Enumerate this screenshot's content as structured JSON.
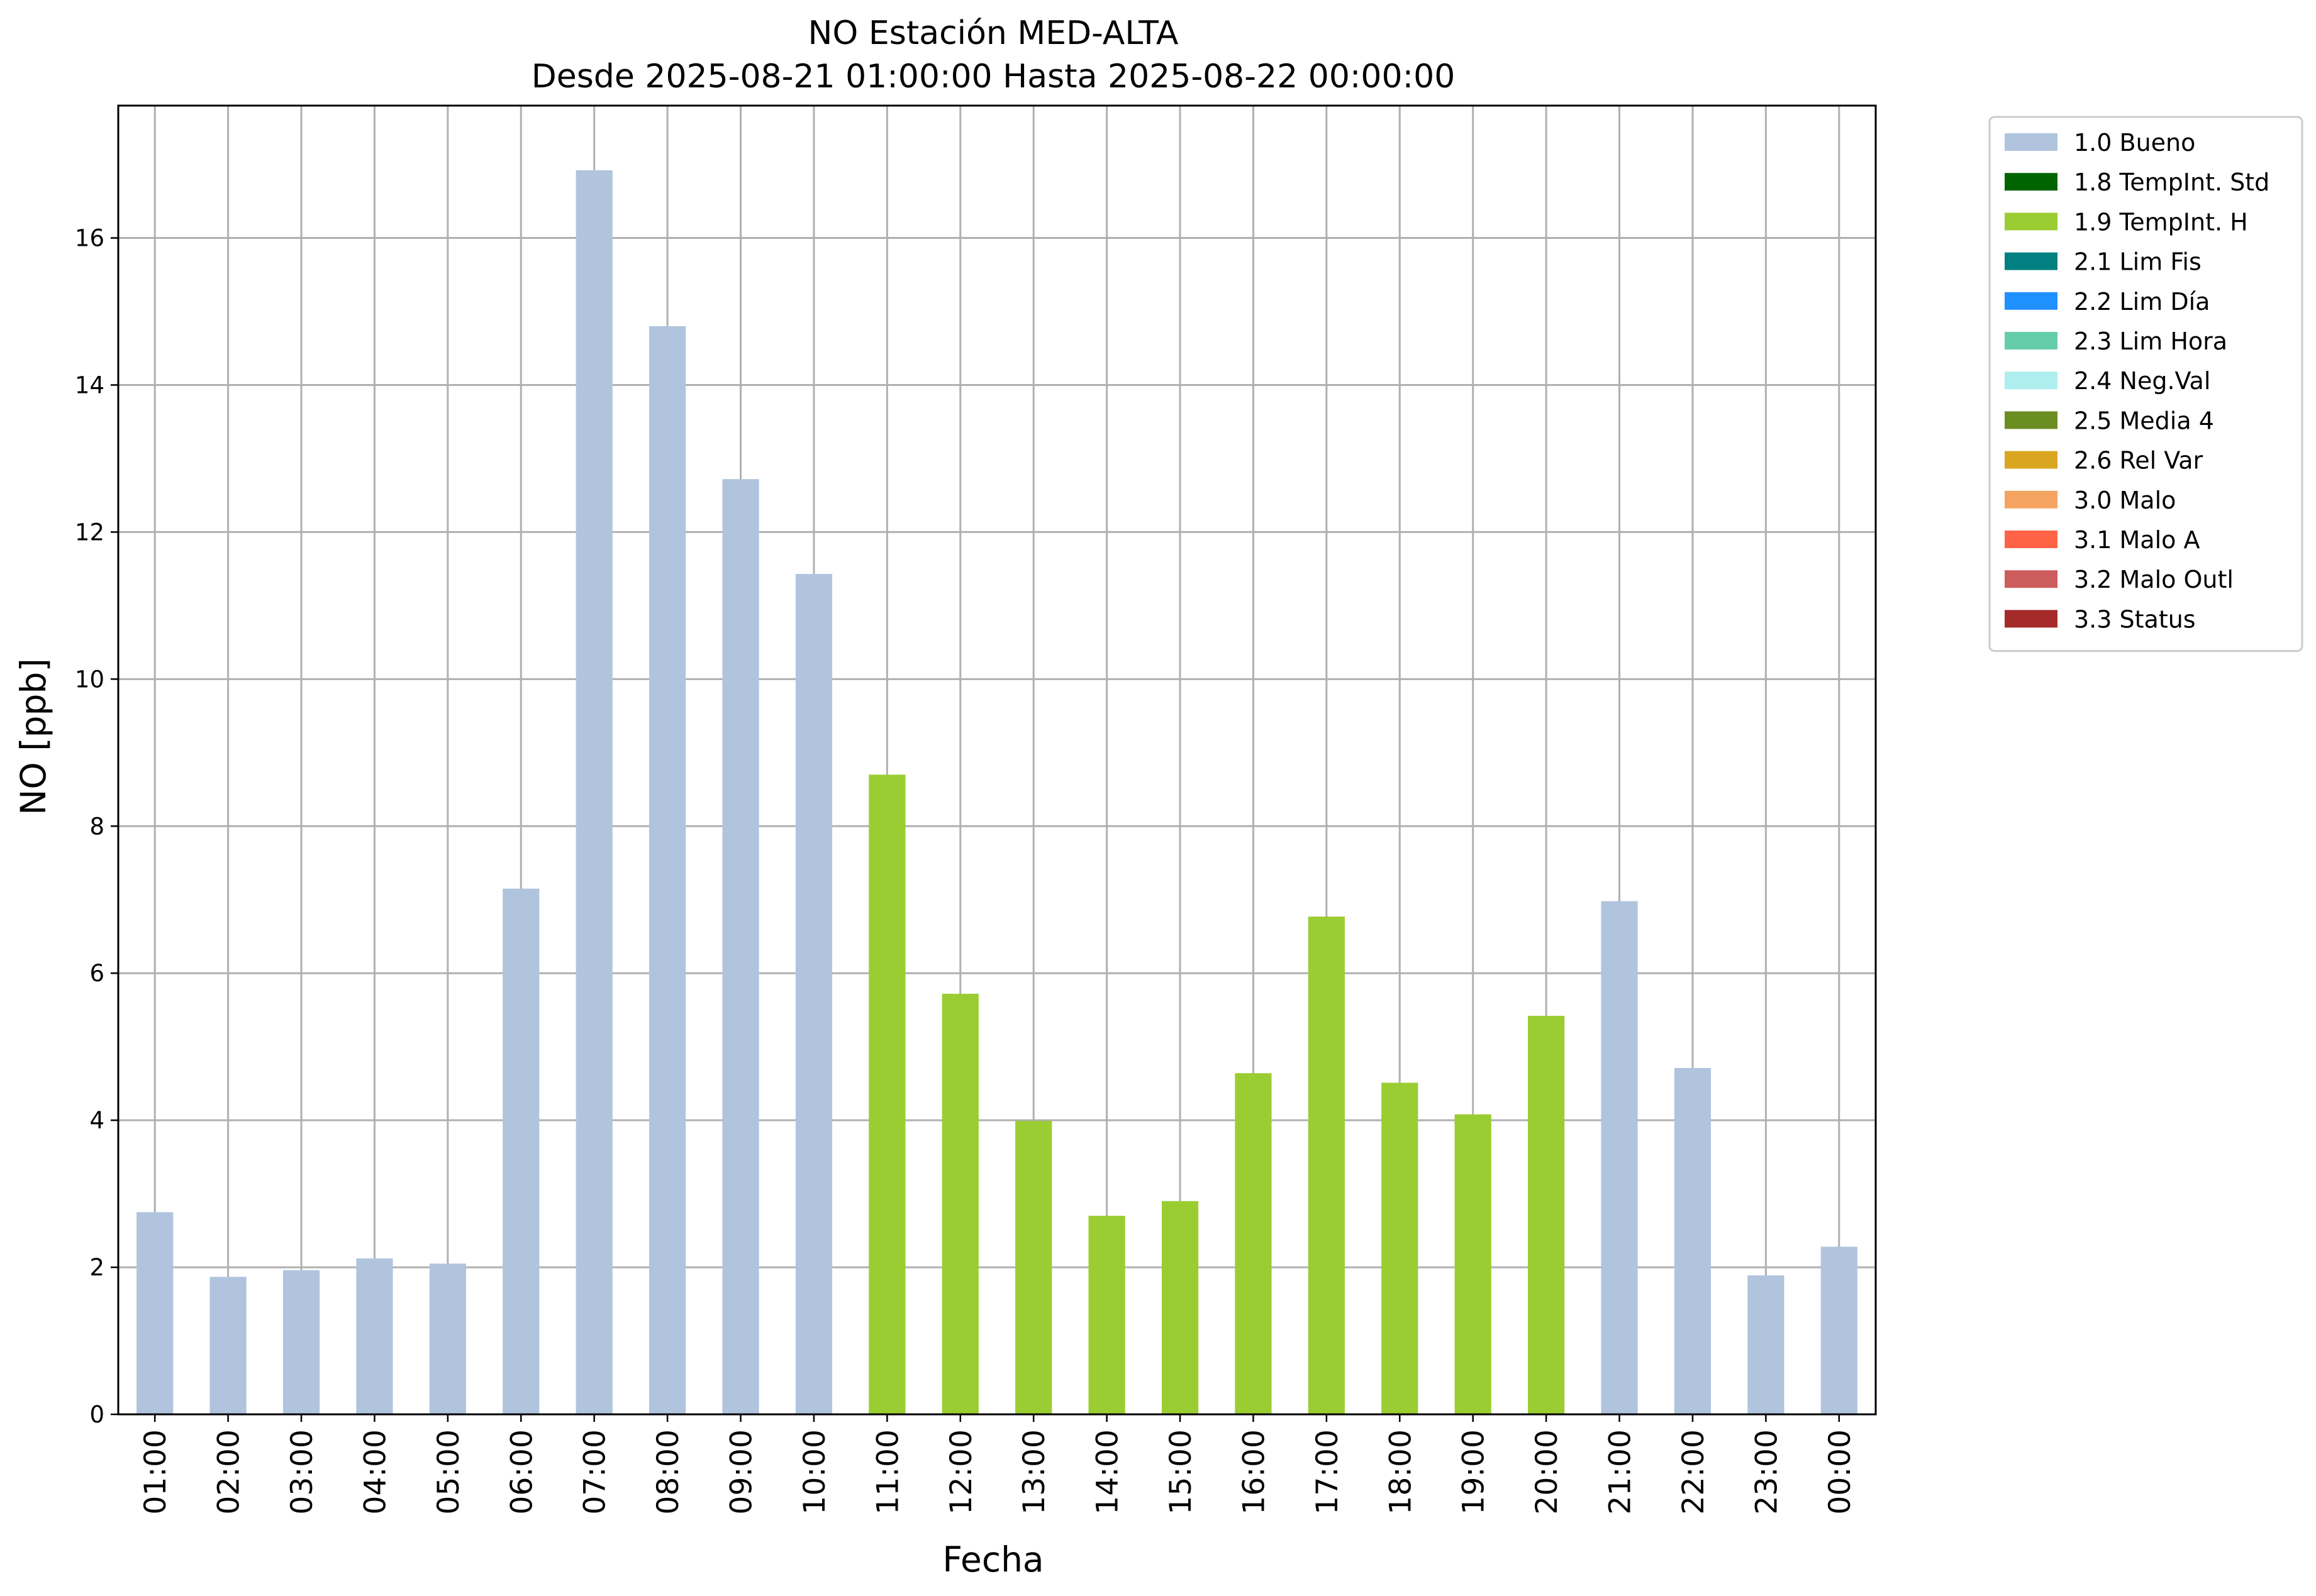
{
  "chart_data": {
    "type": "bar",
    "title": "NO Estación MED-ALTA",
    "subtitle": "Desde 2025-08-21 01:00:00 Hasta 2025-08-22 00:00:00",
    "xlabel": "Fecha",
    "ylabel": "NO [ppb]",
    "ylim": [
      0,
      17.8
    ],
    "yticks": [
      0,
      2,
      4,
      6,
      8,
      10,
      12,
      14,
      16
    ],
    "grid": true,
    "legend_position": "outside-top-right",
    "categories": [
      "01:00",
      "02:00",
      "03:00",
      "04:00",
      "05:00",
      "06:00",
      "07:00",
      "08:00",
      "09:00",
      "10:00",
      "11:00",
      "12:00",
      "13:00",
      "14:00",
      "15:00",
      "16:00",
      "17:00",
      "18:00",
      "19:00",
      "20:00",
      "21:00",
      "22:00",
      "23:00",
      "00:00"
    ],
    "values": [
      2.75,
      1.87,
      1.96,
      2.12,
      2.05,
      7.15,
      16.92,
      14.8,
      12.72,
      11.43,
      8.7,
      5.72,
      3.99,
      2.7,
      2.9,
      4.64,
      6.77,
      4.51,
      4.08,
      5.42,
      6.98,
      4.71,
      1.89,
      2.28
    ],
    "flags": [
      "1.0 Bueno",
      "1.0 Bueno",
      "1.0 Bueno",
      "1.0 Bueno",
      "1.0 Bueno",
      "1.0 Bueno",
      "1.0 Bueno",
      "1.0 Bueno",
      "1.0 Bueno",
      "1.0 Bueno",
      "1.9 TempInt. H",
      "1.9 TempInt. H",
      "1.9 TempInt. H",
      "1.9 TempInt. H",
      "1.9 TempInt. H",
      "1.9 TempInt. H",
      "1.9 TempInt. H",
      "1.9 TempInt. H",
      "1.9 TempInt. H",
      "1.9 TempInt. H",
      "1.0 Bueno",
      "1.0 Bueno",
      "1.0 Bueno",
      "1.0 Bueno"
    ],
    "legend": [
      {
        "label": "1.0 Bueno",
        "color": "#b0c4de"
      },
      {
        "label": "1.8 TempInt. Std",
        "color": "#006400"
      },
      {
        "label": "1.9 TempInt. H",
        "color": "#9acd32"
      },
      {
        "label": "2.1 Lim Fis",
        "color": "#008080"
      },
      {
        "label": "2.2 Lim Día",
        "color": "#1e90ff"
      },
      {
        "label": "2.3 Lim Hora",
        "color": "#66cdaa"
      },
      {
        "label": "2.4 Neg.Val",
        "color": "#afeeee"
      },
      {
        "label": "2.5 Media 4",
        "color": "#6b8e23"
      },
      {
        "label": "2.6 Rel Var",
        "color": "#daa520"
      },
      {
        "label": "3.0 Malo",
        "color": "#f4a460"
      },
      {
        "label": "3.1 Malo A",
        "color": "#ff6347"
      },
      {
        "label": "3.2 Malo Outl",
        "color": "#cd5c5c"
      },
      {
        "label": "3.3 Status",
        "color": "#a52a2a"
      }
    ]
  }
}
